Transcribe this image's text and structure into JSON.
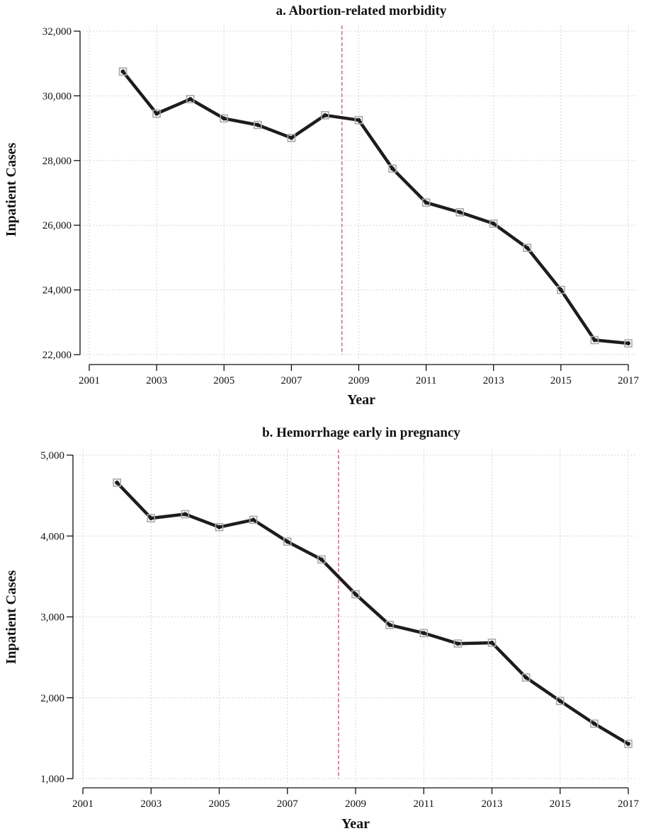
{
  "chart_data": [
    {
      "type": "line",
      "title": "a. Abortion-related morbidity",
      "xlabel": "Year",
      "ylabel": "Inpatient Cases",
      "xlim": [
        2001,
        2017
      ],
      "ylim": [
        22000,
        32000
      ],
      "x_ticks": [
        2001,
        2003,
        2005,
        2007,
        2009,
        2011,
        2013,
        2015,
        2017
      ],
      "x_tick_labels": [
        "2001",
        "2003",
        "2005",
        "2007",
        "2009",
        "2011",
        "2013",
        "2015",
        "2017"
      ],
      "y_ticks": [
        22000,
        24000,
        26000,
        28000,
        30000,
        32000
      ],
      "y_tick_labels": [
        "22,000",
        "24,000",
        "26,000",
        "28,000",
        "30,000",
        "32,000"
      ],
      "grid": true,
      "reference_line_x": 2008.5,
      "reference_line_color": "#c0508a",
      "line_color": "#1f1b1c",
      "x": [
        2002,
        2003,
        2004,
        2005,
        2006,
        2007,
        2008,
        2009,
        2010,
        2011,
        2012,
        2013,
        2014,
        2015,
        2016,
        2017
      ],
      "values": [
        30750,
        29450,
        29900,
        29300,
        29100,
        28700,
        29400,
        29250,
        27750,
        26700,
        26400,
        26050,
        25300,
        24000,
        22450,
        22350
      ]
    },
    {
      "type": "line",
      "title": "b. Hemorrhage early in pregnancy",
      "xlabel": "Year",
      "ylabel": "Inpatient Cases",
      "xlim": [
        2001,
        2017
      ],
      "ylim": [
        1000,
        5000
      ],
      "x_ticks": [
        2001,
        2003,
        2005,
        2007,
        2009,
        2011,
        2013,
        2015,
        2017
      ],
      "x_tick_labels": [
        "2001",
        "2003",
        "2005",
        "2007",
        "2009",
        "2011",
        "2013",
        "2015",
        "2017"
      ],
      "y_ticks": [
        1000,
        2000,
        3000,
        4000,
        5000
      ],
      "y_tick_labels": [
        "1,000",
        "2,000",
        "3,000",
        "4,000",
        "5,000"
      ],
      "grid": true,
      "reference_line_x": 2008.5,
      "reference_line_color": "#c0508a",
      "line_color": "#1f1b1c",
      "x": [
        2002,
        2003,
        2004,
        2005,
        2006,
        2007,
        2008,
        2009,
        2010,
        2011,
        2012,
        2013,
        2014,
        2015,
        2016,
        2017
      ],
      "values": [
        4660,
        4220,
        4270,
        4110,
        4200,
        3930,
        3710,
        3280,
        2900,
        2800,
        2670,
        2680,
        2250,
        1960,
        1680,
        1430
      ]
    }
  ]
}
